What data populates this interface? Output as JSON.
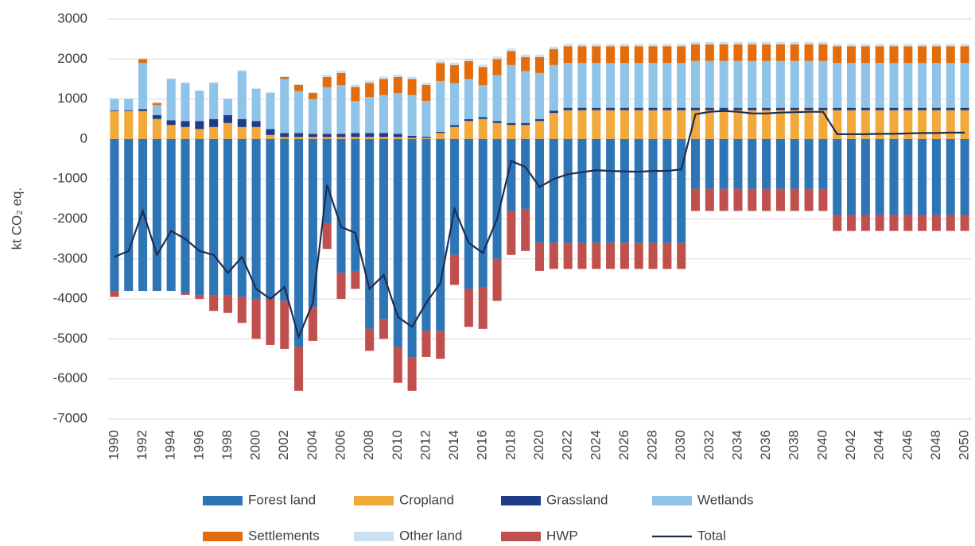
{
  "chart_data": {
    "type": "bar",
    "stacked": true,
    "y_label": "kt CO₂ eq.",
    "categories": [
      "1990",
      null,
      "1992",
      null,
      "1994",
      null,
      "1996",
      null,
      "1998",
      null,
      "2000",
      null,
      "2002",
      null,
      "2004",
      null,
      "2006",
      null,
      "2008",
      null,
      "2010",
      null,
      "2012",
      null,
      "2014",
      null,
      "2016",
      null,
      "2018",
      null,
      "2020",
      null,
      "2022",
      null,
      "2024",
      null,
      "2026",
      null,
      "2028",
      null,
      "2030",
      null,
      "2032",
      null,
      "2034",
      null,
      "2036",
      null,
      "2038",
      null,
      "2040",
      null,
      "2042",
      null,
      "2044",
      null,
      "2046",
      null,
      "2048",
      null,
      "2050"
    ],
    "ylim": [
      -7000,
      3000
    ],
    "yticks": [
      -7000,
      -6000,
      -5000,
      -4000,
      -3000,
      -2000,
      -1000,
      0,
      1000,
      2000,
      3000
    ],
    "grid": true,
    "series": [
      {
        "name": "Forest land",
        "type": "bar",
        "color": "#2e75b6",
        "values": [
          -3800,
          -3800,
          -3800,
          -3800,
          -3800,
          -3850,
          -3900,
          -3900,
          -3900,
          -3950,
          -4000,
          -4000,
          -4050,
          -5200,
          -4200,
          -2100,
          -3350,
          -3300,
          -4750,
          -4500,
          -5200,
          -5450,
          -4800,
          -4800,
          -2900,
          -3750,
          -3700,
          -3000,
          -1800,
          -1750,
          -2600,
          -2600,
          -2600,
          -2600,
          -2600,
          -2600,
          -2600,
          -2600,
          -2600,
          -2600,
          -2600,
          -1250,
          -1250,
          -1250,
          -1250,
          -1250,
          -1250,
          -1250,
          -1250,
          -1250,
          -1250,
          -1900,
          -1900,
          -1900,
          -1900,
          -1900,
          -1900,
          -1900,
          -1900,
          -1900,
          -1900
        ]
      },
      {
        "name": "Cropland",
        "type": "bar",
        "color": "#f2a93b",
        "values": [
          700,
          700,
          700,
          500,
          350,
          300,
          250,
          300,
          400,
          300,
          300,
          100,
          50,
          50,
          50,
          50,
          50,
          50,
          50,
          50,
          50,
          30,
          30,
          150,
          300,
          450,
          500,
          400,
          350,
          350,
          450,
          650,
          720,
          720,
          720,
          720,
          720,
          720,
          720,
          720,
          720,
          720,
          720,
          720,
          720,
          720,
          720,
          720,
          720,
          720,
          720,
          720,
          720,
          720,
          720,
          720,
          720,
          720,
          720,
          720,
          720
        ]
      },
      {
        "name": "Grassland",
        "type": "bar",
        "color": "#1f3c88",
        "values": [
          20,
          20,
          50,
          100,
          120,
          150,
          200,
          200,
          200,
          200,
          150,
          150,
          100,
          100,
          80,
          80,
          80,
          100,
          100,
          100,
          80,
          50,
          30,
          30,
          50,
          50,
          50,
          50,
          50,
          50,
          50,
          60,
          60,
          60,
          60,
          60,
          60,
          60,
          60,
          60,
          60,
          60,
          60,
          60,
          60,
          60,
          60,
          60,
          60,
          60,
          60,
          60,
          60,
          60,
          60,
          60,
          60,
          60,
          60,
          60,
          60
        ]
      },
      {
        "name": "Wetlands",
        "type": "bar",
        "color": "#8fc3e7",
        "values": [
          280,
          280,
          1150,
          250,
          1030,
          950,
          750,
          900,
          400,
          1200,
          800,
          900,
          1350,
          1050,
          870,
          1170,
          1220,
          800,
          900,
          950,
          1020,
          1020,
          890,
          1270,
          1050,
          1000,
          800,
          1150,
          1450,
          1300,
          1150,
          1140,
          1120,
          1120,
          1120,
          1120,
          1120,
          1120,
          1120,
          1120,
          1120,
          1170,
          1170,
          1170,
          1170,
          1170,
          1170,
          1170,
          1170,
          1170,
          1170,
          1120,
          1120,
          1120,
          1120,
          1120,
          1120,
          1120,
          1120,
          1120,
          1120
        ]
      },
      {
        "name": "Settlements",
        "type": "bar",
        "color": "#e46c0a",
        "values": [
          0,
          0,
          100,
          50,
          0,
          0,
          0,
          0,
          0,
          0,
          0,
          0,
          50,
          150,
          150,
          250,
          300,
          350,
          350,
          400,
          400,
          400,
          400,
          450,
          450,
          450,
          450,
          400,
          350,
          350,
          400,
          400,
          420,
          420,
          420,
          420,
          420,
          420,
          420,
          420,
          420,
          420,
          420,
          420,
          420,
          420,
          420,
          420,
          420,
          420,
          420,
          420,
          420,
          420,
          420,
          420,
          420,
          420,
          420,
          420,
          420
        ]
      },
      {
        "name": "Other land",
        "type": "bar",
        "color": "#c9e0f1",
        "values": [
          20,
          20,
          20,
          20,
          20,
          20,
          20,
          20,
          20,
          20,
          20,
          20,
          20,
          20,
          20,
          60,
          60,
          60,
          60,
          60,
          60,
          60,
          60,
          60,
          60,
          60,
          60,
          60,
          60,
          60,
          60,
          60,
          60,
          60,
          60,
          60,
          60,
          60,
          60,
          60,
          60,
          60,
          60,
          60,
          60,
          60,
          60,
          60,
          60,
          60,
          60,
          60,
          60,
          60,
          60,
          60,
          60,
          60,
          60,
          60,
          60
        ]
      },
      {
        "name": "HWP",
        "type": "bar",
        "color": "#c0504d",
        "values": [
          -150,
          0,
          0,
          0,
          0,
          -50,
          -100,
          -400,
          -450,
          -650,
          -1000,
          -1150,
          -1200,
          -1100,
          -850,
          -650,
          -650,
          -450,
          -550,
          -500,
          -900,
          -850,
          -650,
          -700,
          -750,
          -950,
          -1050,
          -1050,
          -1100,
          -1050,
          -700,
          -650,
          -650,
          -650,
          -650,
          -650,
          -650,
          -650,
          -650,
          -650,
          -650,
          -550,
          -550,
          -550,
          -550,
          -550,
          -550,
          -550,
          -550,
          -550,
          -550,
          -400,
          -400,
          -400,
          -400,
          -400,
          -400,
          -400,
          -400,
          -400,
          -400
        ]
      },
      {
        "name": "Total",
        "type": "line",
        "color": "#1f2d4f",
        "values": [
          -2950,
          -2800,
          -1800,
          -2900,
          -2300,
          -2500,
          -2800,
          -2900,
          -3350,
          -2950,
          -3750,
          -4000,
          -3700,
          -4950,
          -4100,
          -1150,
          -2200,
          -2350,
          -3750,
          -3400,
          -4450,
          -4700,
          -4100,
          -3600,
          -1750,
          -2600,
          -2850,
          -2000,
          -550,
          -700,
          -1200,
          -1000,
          -880,
          -830,
          -780,
          -800,
          -810,
          -820,
          -800,
          -800,
          -760,
          620,
          680,
          700,
          680,
          640,
          640,
          660,
          670,
          680,
          680,
          120,
          120,
          120,
          130,
          130,
          140,
          150,
          150,
          160,
          160
        ]
      }
    ]
  }
}
